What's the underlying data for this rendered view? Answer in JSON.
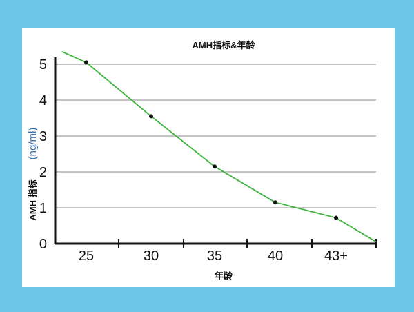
{
  "chart_data": {
    "type": "line",
    "title": "AMH指标&年龄",
    "xlabel": "年龄",
    "ylabel": "AMH 指标",
    "ylabel_unit": "(ng/ml)",
    "categories": [
      "25",
      "30",
      "35",
      "40",
      "43+"
    ],
    "highlight_category": "43+",
    "highlight_color": "#d8202a",
    "series": [
      {
        "values": [
          5.05,
          3.55,
          2.15,
          1.15,
          0.72
        ],
        "line_start": 5.35,
        "line_end": 0.05,
        "color": "#3cb43c"
      }
    ],
    "ylim": [
      0,
      5
    ],
    "yticks": [
      0,
      1,
      2,
      3,
      4,
      5
    ],
    "grid": true,
    "legend": "none"
  }
}
